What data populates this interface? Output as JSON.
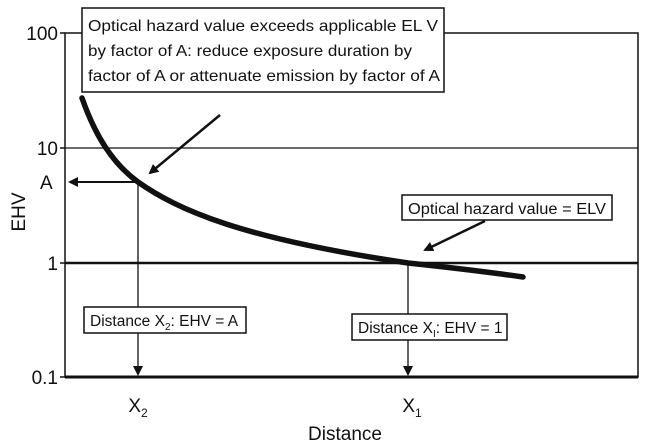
{
  "diagram": {
    "y_axis": {
      "label": "EHV",
      "ticks": [
        "100",
        "10",
        "1",
        "0.1"
      ],
      "scale": "log"
    },
    "x_axis": {
      "label": "Distance",
      "ticks": [
        {
          "base": "X",
          "sub": "2"
        },
        {
          "base": "X",
          "sub": "1"
        }
      ]
    },
    "marker_a": "A",
    "callout_exceeds": {
      "line1": "Optical hazard value exceeds applicable EL V",
      "line2": "by factor of A: reduce exposure duration by",
      "line3": "factor of A or attenuate emission by factor of A"
    },
    "callout_elv": "Optical hazard value = ELV",
    "label_x2": {
      "pre": "Distance X",
      "sub": "2",
      "post": ": EHV = A"
    },
    "label_x1": {
      "pre": "Distance X",
      "sub": "I",
      "post": ": EHV = 1"
    }
  }
}
